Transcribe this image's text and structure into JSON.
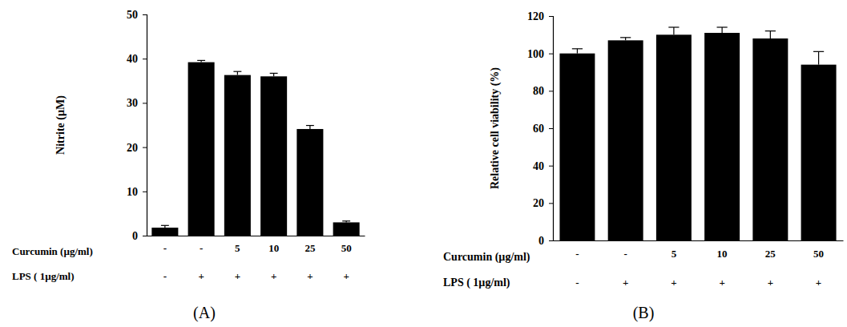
{
  "chart_data": [
    {
      "type": "bar",
      "panel_label": "(A)",
      "y_label": "Nitrite (µM)",
      "category_title": "Curcumin (µg/ml)",
      "categories": [
        "-",
        "-",
        "5",
        "10",
        "25",
        "50"
      ],
      "category2_title": "LPS ( 1µg/ml)",
      "categories2": [
        "-",
        "+",
        "+",
        "+",
        "+",
        "+"
      ],
      "values": [
        1.8,
        39.2,
        36.3,
        36.0,
        24.1,
        3.0
      ],
      "errors": [
        0.5,
        0.4,
        0.8,
        0.7,
        0.8,
        0.3
      ],
      "color": "#000000",
      "ylim": [
        0,
        50
      ],
      "yticks": [
        0,
        10,
        20,
        30,
        40,
        50
      ],
      "grid": false
    },
    {
      "type": "bar",
      "panel_label": "(B)",
      "y_label": "Relative cell viability (%)",
      "category_title": "Curcumin (µg/ml)",
      "categories": [
        "-",
        "-",
        "5",
        "10",
        "25",
        "50"
      ],
      "category2_title": "LPS ( 1µg/ml)",
      "categories2": [
        "-",
        "+",
        "+",
        "+",
        "+",
        "+"
      ],
      "values": [
        100,
        107,
        110,
        111,
        108,
        94
      ],
      "errors": [
        2.5,
        1.5,
        4,
        3,
        4,
        7
      ],
      "color": "#000000",
      "ylim": [
        0,
        120
      ],
      "yticks": [
        0,
        20,
        40,
        60,
        80,
        100,
        120
      ],
      "grid": false
    }
  ]
}
